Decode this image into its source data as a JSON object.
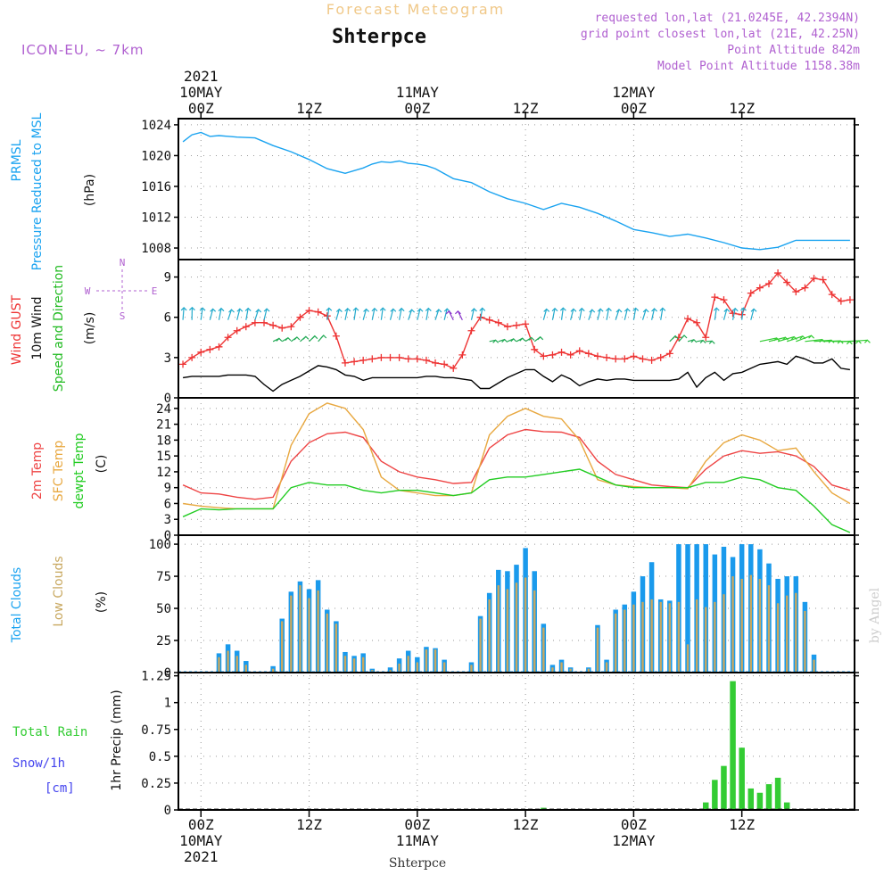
{
  "header": {
    "title": "Forecast Meteogram",
    "station": "Shterpce",
    "model": "ICON-EU, ~ 7km",
    "requested": "requested lon,lat (21.0245E, 42.2394N)",
    "grid_point": "grid point closest lon,lat (21E, 42.25N)",
    "point_altitude": "Point Altitude 842m",
    "model_altitude": "Model Point Altitude 1158.38m",
    "footer_station": "Shterpce",
    "watermark": "by Angel"
  },
  "time_axis": {
    "top_labels": [
      {
        "hour": 0,
        "lines": [
          "2021",
          "10MAY",
          "00Z"
        ]
      },
      {
        "hour": 12,
        "lines": [
          "12Z"
        ]
      },
      {
        "hour": 24,
        "lines": [
          "11MAY",
          "00Z"
        ]
      },
      {
        "hour": 36,
        "lines": [
          "12Z"
        ]
      },
      {
        "hour": 48,
        "lines": [
          "12MAY",
          "00Z"
        ]
      },
      {
        "hour": 60,
        "lines": [
          "12Z"
        ]
      }
    ],
    "bottom_labels": [
      {
        "hour": 0,
        "lines": [
          "00Z",
          "10MAY",
          "2021"
        ]
      },
      {
        "hour": 12,
        "lines": [
          "12Z"
        ]
      },
      {
        "hour": 24,
        "lines": [
          "00Z",
          "11MAY"
        ]
      },
      {
        "hour": 36,
        "lines": [
          "12Z"
        ]
      },
      {
        "hour": 48,
        "lines": [
          "00Z",
          "12MAY"
        ]
      },
      {
        "hour": 60,
        "lines": [
          "12Z"
        ]
      }
    ],
    "hour_range": [
      -2.5,
      72.5
    ]
  },
  "colors": {
    "pressure": "#1aa3f0",
    "gust": "#ee3333",
    "wind": "#000000",
    "temp": "#ee4444",
    "sfc": "#e8a840",
    "dew": "#22cc22",
    "total_cloud": "#1a9aec",
    "low_cloud": "#c8a860",
    "rain": "#33cc33",
    "snow": "#4444ee",
    "header_title": "#f0c888",
    "header_info": "#b060d0"
  },
  "panels": {
    "pressure": {
      "ylabels": [
        "PRMSL",
        "Pressure Reduced to MSL"
      ],
      "unit": "(hPa)"
    },
    "wind": {
      "ylabels": [
        "Wind GUST",
        "10m Wind",
        "Speed and Direction"
      ],
      "unit": "(m/s)",
      "compass": {
        "n": "N",
        "s": "S",
        "e": "E",
        "w": "W"
      }
    },
    "temp": {
      "ylabels": [
        "2m Temp",
        "SFC Temp",
        "dewpt Temp"
      ],
      "unit": "(C)"
    },
    "clouds": {
      "ylabels": [
        "Total Clouds",
        "Low Clouds"
      ],
      "unit": "(%)"
    },
    "precip": {
      "ylabels": [
        "Total  Rain",
        "Snow/1h",
        "[cm]"
      ],
      "unit": "1hr Precip (mm)"
    }
  },
  "chart_data": [
    {
      "id": "pressure",
      "type": "line",
      "title": "PRMSL Pressure Reduced to MSL",
      "ylabel": "(hPa)",
      "ylim": [
        1006.5,
        1024.8
      ],
      "yticks": [
        1008,
        1012,
        1016,
        1020,
        1024
      ],
      "x": [
        -2,
        -1,
        0,
        1,
        2,
        4,
        6,
        8,
        10,
        12,
        14,
        16,
        18,
        19,
        20,
        21,
        22,
        23,
        24,
        25,
        26,
        28,
        30,
        32,
        34,
        36,
        38,
        40,
        42,
        44,
        46,
        48,
        50,
        52,
        54,
        56,
        58,
        60,
        62,
        64,
        66,
        68,
        70,
        72
      ],
      "series": [
        {
          "name": "PRMSL",
          "values": [
            1021.8,
            1022.7,
            1023.0,
            1022.5,
            1022.6,
            1022.4,
            1022.3,
            1021.3,
            1020.5,
            1019.5,
            1018.3,
            1017.7,
            1018.4,
            1018.9,
            1019.2,
            1019.1,
            1019.3,
            1019.0,
            1018.9,
            1018.7,
            1018.3,
            1017.0,
            1016.5,
            1015.3,
            1014.4,
            1013.8,
            1013.0,
            1013.8,
            1013.3,
            1012.5,
            1011.5,
            1010.4,
            1010.0,
            1009.5,
            1009.8,
            1009.3,
            1008.7,
            1008.0,
            1007.8,
            1008.1,
            1009.0,
            1009.0,
            1009.0,
            1009.0
          ]
        }
      ]
    },
    {
      "id": "wind",
      "type": "line",
      "title": "Wind GUST / 10m Wind Speed and Direction",
      "ylabel": "(m/s)",
      "ylim": [
        0,
        10.3
      ],
      "yticks": [
        0,
        3,
        6,
        9
      ],
      "x": [
        -2,
        -1,
        0,
        1,
        2,
        3,
        4,
        5,
        6,
        7,
        8,
        9,
        10,
        11,
        12,
        13,
        14,
        15,
        16,
        17,
        18,
        19,
        20,
        21,
        22,
        23,
        24,
        25,
        26,
        27,
        28,
        29,
        30,
        31,
        32,
        33,
        34,
        35,
        36,
        37,
        38,
        39,
        40,
        41,
        42,
        43,
        44,
        45,
        46,
        47,
        48,
        49,
        50,
        51,
        52,
        53,
        54,
        55,
        56,
        57,
        58,
        59,
        60,
        61,
        62,
        63,
        64,
        65,
        66,
        67,
        68,
        69,
        70,
        71,
        72
      ],
      "series": [
        {
          "name": "Wind GUST",
          "values": [
            2.5,
            3.0,
            3.4,
            3.6,
            3.8,
            4.5,
            5.0,
            5.3,
            5.6,
            5.6,
            5.4,
            5.2,
            5.3,
            6.0,
            6.5,
            6.4,
            6.1,
            4.6,
            2.6,
            2.7,
            2.8,
            2.9,
            3.0,
            3.0,
            3.0,
            2.9,
            2.9,
            2.8,
            2.6,
            2.5,
            2.2,
            3.2,
            5.0,
            6.0,
            5.8,
            5.6,
            5.3,
            5.4,
            5.5,
            3.6,
            3.1,
            3.2,
            3.4,
            3.2,
            3.5,
            3.3,
            3.1,
            3.0,
            2.9,
            2.9,
            3.1,
            2.9,
            2.8,
            3.0,
            3.3,
            4.5,
            5.9,
            5.6,
            4.5,
            7.5,
            7.3,
            6.3,
            6.2,
            7.8,
            8.2,
            8.5,
            9.3,
            8.6,
            7.9,
            8.2,
            8.9,
            8.8,
            7.7,
            7.2,
            7.3
          ]
        },
        {
          "name": "10m Wind",
          "values": [
            1.5,
            1.6,
            1.6,
            1.6,
            1.6,
            1.7,
            1.7,
            1.7,
            1.6,
            1.0,
            0.5,
            1.0,
            1.3,
            1.6,
            2.0,
            2.4,
            2.3,
            2.1,
            1.7,
            1.6,
            1.3,
            1.5,
            1.5,
            1.5,
            1.5,
            1.5,
            1.5,
            1.6,
            1.6,
            1.5,
            1.5,
            1.4,
            1.3,
            0.7,
            0.7,
            1.1,
            1.5,
            1.8,
            2.1,
            2.1,
            1.6,
            1.2,
            1.7,
            1.4,
            0.9,
            1.2,
            1.4,
            1.3,
            1.4,
            1.4,
            1.3,
            1.3,
            1.3,
            1.3,
            1.3,
            1.4,
            1.9,
            0.8,
            1.5,
            1.9,
            1.3,
            1.8,
            1.9,
            2.2,
            2.5,
            2.6,
            2.7,
            2.5,
            3.1,
            2.9,
            2.6,
            2.6,
            2.9,
            2.2,
            2.1
          ]
        }
      ]
    },
    {
      "id": "temperature",
      "type": "line",
      "title": "2m Temp / SFC Temp / dewpt Temp",
      "ylabel": "(C)",
      "ylim": [
        0,
        26
      ],
      "yticks": [
        0,
        3,
        6,
        9,
        12,
        15,
        18,
        21,
        24
      ],
      "x": [
        -2,
        0,
        2,
        4,
        6,
        8,
        10,
        12,
        14,
        16,
        18,
        20,
        22,
        24,
        26,
        28,
        30,
        32,
        34,
        36,
        38,
        40,
        42,
        44,
        46,
        48,
        50,
        52,
        54,
        56,
        58,
        60,
        62,
        64,
        66,
        68,
        70,
        72
      ],
      "series": [
        {
          "name": "2m Temp",
          "values": [
            9.5,
            8.0,
            7.8,
            7.2,
            6.8,
            7.2,
            14.0,
            17.5,
            19.2,
            19.5,
            18.5,
            14.0,
            12.0,
            11.0,
            10.5,
            9.8,
            10.0,
            16.5,
            19.0,
            20.0,
            19.6,
            19.5,
            18.5,
            14.0,
            11.5,
            10.5,
            9.5,
            9.2,
            9.0,
            12.5,
            15.0,
            16.0,
            15.5,
            15.8,
            15.0,
            13.0,
            9.5,
            8.5
          ]
        },
        {
          "name": "SFC Temp",
          "values": [
            6.0,
            5.5,
            5.2,
            5.0,
            5.0,
            5.0,
            17.0,
            23.0,
            25.0,
            24.0,
            20.0,
            11.0,
            8.5,
            8.0,
            7.5,
            7.5,
            8.0,
            19.0,
            22.5,
            24.0,
            22.5,
            22.0,
            18.0,
            10.5,
            9.5,
            9.2,
            9.0,
            9.0,
            8.8,
            14.0,
            17.5,
            19.0,
            18.0,
            16.0,
            16.5,
            12.0,
            8.0,
            6.0
          ]
        },
        {
          "name": "dewpt Temp",
          "values": [
            3.5,
            5.0,
            4.8,
            5.0,
            5.0,
            5.0,
            9.0,
            10.0,
            9.5,
            9.5,
            8.5,
            8.0,
            8.5,
            8.5,
            8.0,
            7.5,
            8.0,
            10.5,
            11.0,
            11.0,
            11.5,
            12.0,
            12.5,
            11.0,
            9.5,
            9.0,
            9.0,
            9.0,
            9.0,
            10.0,
            10.0,
            11.0,
            10.5,
            9.0,
            8.5,
            5.5,
            2.0,
            0.5
          ]
        }
      ]
    },
    {
      "id": "clouds",
      "type": "bar",
      "title": "Total Clouds / Low Clouds",
      "ylabel": "(%)",
      "ylim": [
        0,
        107
      ],
      "yticks": [
        0,
        25,
        50,
        75,
        100
      ],
      "x": [
        -2,
        -1,
        0,
        1,
        2,
        3,
        4,
        5,
        6,
        7,
        8,
        9,
        10,
        11,
        12,
        13,
        14,
        15,
        16,
        17,
        18,
        19,
        20,
        21,
        22,
        23,
        24,
        25,
        26,
        27,
        28,
        29,
        30,
        31,
        32,
        33,
        34,
        35,
        36,
        37,
        38,
        39,
        40,
        41,
        42,
        43,
        44,
        45,
        46,
        47,
        48,
        49,
        50,
        51,
        52,
        53,
        54,
        55,
        56,
        57,
        58,
        59,
        60,
        61,
        62,
        63,
        64,
        65,
        66,
        67,
        68,
        69,
        70,
        71,
        72
      ],
      "series": [
        {
          "name": "Total Clouds",
          "values": [
            0,
            0,
            0,
            0,
            15,
            22,
            17,
            9,
            0,
            0,
            5,
            42,
            63,
            71,
            65,
            72,
            49,
            40,
            16,
            13,
            15,
            3,
            0,
            4,
            11,
            17,
            12,
            20,
            19,
            10,
            0,
            0,
            8,
            44,
            62,
            80,
            79,
            84,
            97,
            79,
            38,
            6,
            10,
            4,
            0,
            4,
            37,
            10,
            49,
            53,
            63,
            75,
            86,
            57,
            56,
            100,
            100,
            100,
            100,
            92,
            98,
            90,
            100,
            100,
            96,
            85,
            73,
            75,
            75,
            55,
            14,
            0,
            0,
            0,
            0
          ]
        },
        {
          "name": "Low Clouds",
          "values": [
            0,
            0,
            0,
            0,
            12,
            17,
            13,
            6,
            0,
            0,
            3,
            40,
            60,
            68,
            58,
            64,
            46,
            38,
            13,
            11,
            12,
            2,
            0,
            2,
            7,
            13,
            8,
            18,
            18,
            8,
            0,
            0,
            6,
            42,
            57,
            68,
            65,
            70,
            74,
            64,
            35,
            4,
            8,
            3,
            0,
            3,
            35,
            8,
            46,
            49,
            53,
            55,
            57,
            55,
            54,
            55,
            22,
            57,
            51,
            55,
            61,
            75,
            73,
            76,
            73,
            68,
            54,
            60,
            62,
            48,
            10,
            0,
            0,
            0,
            0
          ]
        }
      ]
    },
    {
      "id": "precip",
      "type": "bar",
      "title": "1hr Precip",
      "ylabel": "1hr Precip (mm)",
      "ylim": [
        0,
        1.28
      ],
      "yticks": [
        0,
        0.25,
        0.5,
        0.75,
        1,
        1.25
      ],
      "ytick_labels": [
        "0",
        "0.25",
        "0.5",
        "0.75",
        "1",
        "1.25"
      ],
      "x": [
        38,
        56,
        57,
        58,
        59,
        60,
        61,
        62,
        63,
        64,
        65,
        66,
        67
      ],
      "series": [
        {
          "name": "Total Rain",
          "values": [
            0.02,
            0.07,
            0.28,
            0.41,
            1.2,
            0.58,
            0.2,
            0.16,
            0.24,
            0.3,
            0.07,
            0,
            0
          ]
        }
      ]
    }
  ]
}
